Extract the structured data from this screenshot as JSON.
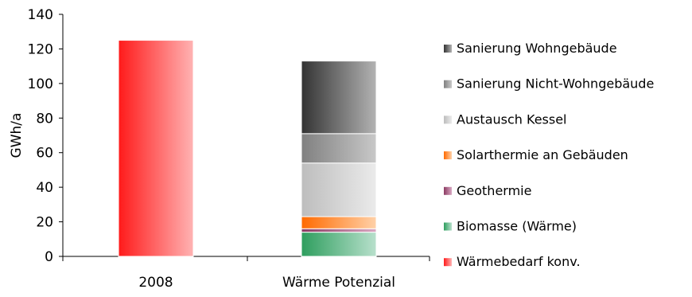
{
  "chart_data": {
    "type": "bar",
    "stacked": true,
    "categories": [
      "2008",
      "Wärme Potenzial"
    ],
    "ylabel": "GWh/a",
    "xlabel": "",
    "ylim": [
      0,
      140
    ],
    "yticks": [
      0,
      20,
      40,
      60,
      80,
      100,
      120,
      140
    ],
    "grid": false,
    "legend_position": "right",
    "series": [
      {
        "name": "Wärmebedarf konv.",
        "values": [
          125,
          0
        ],
        "color_dark": "#ff1a1a",
        "color_light": "#ffb3b3"
      },
      {
        "name": "Biomasse (Wärme)",
        "values": [
          0,
          14
        ],
        "color_dark": "#2e9e5e",
        "color_light": "#b8e0cc"
      },
      {
        "name": "Geothermie",
        "values": [
          0,
          2
        ],
        "color_dark": "#8b3a62",
        "color_light": "#d9a8c2"
      },
      {
        "name": "Solarthermie an Gebäuden",
        "values": [
          0,
          7
        ],
        "color_dark": "#ff6a00",
        "color_light": "#ffd1a8"
      },
      {
        "name": "Austausch Kessel",
        "values": [
          0,
          31
        ],
        "color_dark": "#bdbdbd",
        "color_light": "#ebebeb"
      },
      {
        "name": "Sanierung Nicht-Wohngebäude",
        "values": [
          0,
          17
        ],
        "color_dark": "#808080",
        "color_light": "#c8c8c8"
      },
      {
        "name": "Sanierung Wohngebäude",
        "values": [
          0,
          42
        ],
        "color_dark": "#333333",
        "color_light": "#b3b3b3"
      }
    ]
  }
}
